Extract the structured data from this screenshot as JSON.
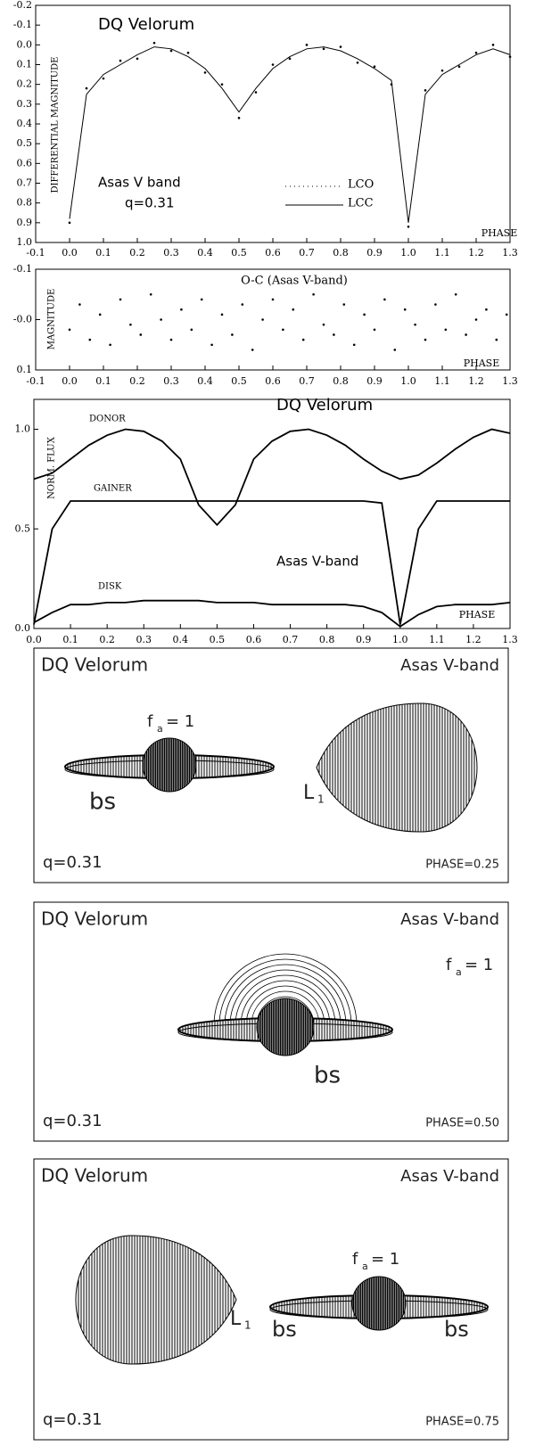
{
  "chart_data": [
    {
      "type": "line",
      "title": "DQ Velorum",
      "annotations": [
        "Asas V band",
        "q=0.31"
      ],
      "xlabel": "PHASE",
      "ylabel": "DIFFERENTIAL MAGNITUDE",
      "y_inverted": true,
      "x": [
        0.0,
        0.05,
        0.1,
        0.15,
        0.2,
        0.25,
        0.3,
        0.35,
        0.4,
        0.45,
        0.5,
        0.55,
        0.6,
        0.65,
        0.7,
        0.75,
        0.8,
        0.85,
        0.9,
        0.95,
        1.0,
        1.05,
        1.1,
        1.15,
        1.2,
        1.25,
        1.3
      ],
      "series": [
        {
          "name": "LCO",
          "color": "#000000",
          "style": "dots",
          "values": [
            0.9,
            0.22,
            0.17,
            0.08,
            0.07,
            -0.01,
            0.03,
            0.04,
            0.14,
            0.2,
            0.37,
            0.24,
            0.1,
            0.07,
            0.0,
            0.02,
            0.01,
            0.09,
            0.11,
            0.2,
            0.92,
            0.23,
            0.13,
            0.11,
            0.04,
            0.0,
            0.06
          ]
        },
        {
          "name": "LCC",
          "color": "#000000",
          "style": "line",
          "values": [
            0.88,
            0.25,
            0.15,
            0.1,
            0.05,
            0.01,
            0.02,
            0.06,
            0.12,
            0.22,
            0.34,
            0.22,
            0.12,
            0.06,
            0.02,
            0.01,
            0.03,
            0.07,
            0.12,
            0.18,
            0.9,
            0.25,
            0.15,
            0.1,
            0.05,
            0.02,
            0.05
          ]
        }
      ],
      "xlim": [
        -0.1,
        1.3
      ],
      "xticks": [
        -0.1,
        {
          "value": 0,
          "label": "0.0"
        },
        0.1,
        0.2,
        0.3,
        0.4,
        0.5,
        0.6,
        0.7,
        0.8,
        0.9,
        {
          "value": 1,
          "label": "1.0"
        },
        1.1,
        1.2,
        1.3
      ],
      "ylim": [
        -0.2,
        1.0
      ],
      "yticks": [
        -0.2,
        -0.1,
        {
          "value": 0,
          "label": "0.0"
        },
        0.1,
        0.2,
        0.3,
        0.4,
        0.5,
        0.6,
        0.7,
        0.8,
        0.9,
        {
          "value": 1,
          "label": "1.0"
        }
      ]
    },
    {
      "type": "scatter",
      "title": "O-C (Asas V-band)",
      "xlabel": "PHASE",
      "ylabel": "MAGNITUDE",
      "y_inverted": true,
      "x": [
        0.0,
        0.03,
        0.06,
        0.09,
        0.12,
        0.15,
        0.18,
        0.21,
        0.24,
        0.27,
        0.3,
        0.33,
        0.36,
        0.39,
        0.42,
        0.45,
        0.48,
        0.51,
        0.54,
        0.57,
        0.6,
        0.63,
        0.66,
        0.69,
        0.72,
        0.75,
        0.78,
        0.81,
        0.84,
        0.87,
        0.9,
        0.93,
        0.96,
        0.99,
        1.02,
        1.05,
        1.08,
        1.11,
        1.14,
        1.17,
        1.2,
        1.23,
        1.26,
        1.29
      ],
      "values": [
        0.02,
        -0.03,
        0.04,
        -0.01,
        0.05,
        -0.04,
        0.01,
        0.03,
        -0.05,
        0.0,
        0.04,
        -0.02,
        0.02,
        -0.04,
        0.05,
        -0.01,
        0.03,
        -0.03,
        0.06,
        0.0,
        -0.04,
        0.02,
        -0.02,
        0.04,
        -0.05,
        0.01,
        0.03,
        -0.03,
        0.05,
        -0.01,
        0.02,
        -0.04,
        0.06,
        -0.02,
        0.01,
        0.04,
        -0.03,
        0.02,
        -0.05,
        0.03,
        0.0,
        -0.02,
        0.04,
        -0.01
      ],
      "color": "#000000",
      "xlim": [
        -0.1,
        1.3
      ],
      "xticks": [
        -0.1,
        {
          "value": 0,
          "label": "0.0"
        },
        0.1,
        0.2,
        0.3,
        0.4,
        0.5,
        0.6,
        0.7,
        0.8,
        0.9,
        {
          "value": 1,
          "label": "1.0"
        },
        1.1,
        1.2,
        1.3
      ],
      "ylim": [
        -0.1,
        0.1
      ],
      "yticks": [
        -0.1,
        {
          "value": 0,
          "label": "-0.0"
        },
        0.1
      ]
    },
    {
      "type": "line",
      "title": "DQ Velorum",
      "annotations": [
        "Asas V-band"
      ],
      "xlabel": "PHASE",
      "ylabel": "NORM. FLUX",
      "y_inverted": false,
      "x": [
        0.0,
        0.05,
        0.1,
        0.15,
        0.2,
        0.25,
        0.3,
        0.35,
        0.4,
        0.45,
        0.5,
        0.55,
        0.6,
        0.65,
        0.7,
        0.75,
        0.8,
        0.85,
        0.9,
        0.95,
        1.0,
        1.05,
        1.1,
        1.15,
        1.2,
        1.25,
        1.3
      ],
      "series": [
        {
          "name": "DONOR",
          "color": "#000000",
          "style": "line",
          "values": [
            0.75,
            0.78,
            0.85,
            0.92,
            0.97,
            1.0,
            0.99,
            0.94,
            0.85,
            0.62,
            0.52,
            0.62,
            0.85,
            0.94,
            0.99,
            1.0,
            0.97,
            0.92,
            0.85,
            0.79,
            0.75,
            0.77,
            0.83,
            0.9,
            0.96,
            1.0,
            0.98
          ]
        },
        {
          "name": "GAINER",
          "color": "#000000",
          "style": "line",
          "values": [
            0.02,
            0.5,
            0.64,
            0.64,
            0.64,
            0.64,
            0.64,
            0.64,
            0.64,
            0.64,
            0.64,
            0.64,
            0.64,
            0.64,
            0.64,
            0.64,
            0.64,
            0.64,
            0.64,
            0.63,
            0.02,
            0.5,
            0.64,
            0.64,
            0.64,
            0.64,
            0.64
          ]
        },
        {
          "name": "DISK",
          "color": "#000000",
          "style": "line",
          "values": [
            0.03,
            0.08,
            0.12,
            0.12,
            0.13,
            0.13,
            0.14,
            0.14,
            0.14,
            0.14,
            0.13,
            0.13,
            0.13,
            0.12,
            0.12,
            0.12,
            0.12,
            0.12,
            0.11,
            0.08,
            0.01,
            0.07,
            0.11,
            0.12,
            0.12,
            0.12,
            0.13
          ]
        }
      ],
      "xlim": [
        0,
        1.3
      ],
      "xticks": [
        {
          "value": 0,
          "label": "0.0"
        },
        0.1,
        0.2,
        0.3,
        0.4,
        0.5,
        0.6,
        0.7,
        0.8,
        0.9,
        {
          "value": 1,
          "label": "1.0"
        },
        1.1,
        1.2,
        1.3
      ],
      "ylim": [
        0,
        1.15
      ],
      "yticks": [
        {
          "value": 0,
          "label": "0.0"
        },
        0.5,
        {
          "value": 1,
          "label": "1.0"
        }
      ]
    }
  ],
  "panels": [
    {
      "title": "DQ Velorum",
      "band": "Asas V-band",
      "q": "q=0.31",
      "phase": "PHASE=0.25",
      "labels": [
        "f",
        "a",
        "= 1",
        "bs",
        "L",
        "1"
      ]
    },
    {
      "title": "DQ Velorum",
      "band": "Asas V-band",
      "q": "q=0.31",
      "phase": "PHASE=0.50",
      "labels": [
        "f",
        "a",
        "= 1",
        "bs"
      ]
    },
    {
      "title": "DQ Velorum",
      "band": "Asas V-band",
      "q": "q=0.31",
      "phase": "PHASE=0.75",
      "labels": [
        "f",
        "a",
        "= 1",
        "bs",
        "bs",
        "L",
        "1"
      ]
    }
  ]
}
